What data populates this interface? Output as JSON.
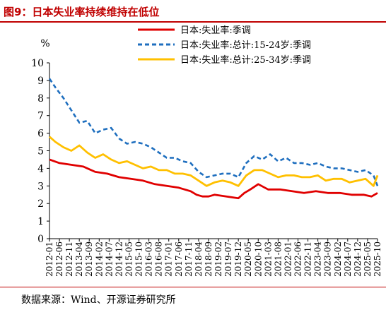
{
  "figure": {
    "title": "图9：日本失业率持续维持在低位",
    "source": "数据来源：Wind、开源证券研究所",
    "colors": {
      "title": "#c00000",
      "axis": "#000000"
    }
  },
  "chart_data": {
    "type": "line",
    "ylabel": "%",
    "ylim": [
      0,
      10
    ],
    "yticks": [
      0,
      1,
      2,
      3,
      4,
      5,
      6,
      7,
      8,
      9,
      10
    ],
    "xlim": [
      "2012-01",
      "2025-10"
    ],
    "xticks": [
      "2012-01",
      "2012-06",
      "2012-11",
      "2013-04",
      "2013-09",
      "2014-02",
      "2014-07",
      "2014-12",
      "2015-05",
      "2015-10",
      "2016-03",
      "2016-08",
      "2017-01",
      "2017-06",
      "2017-11",
      "2018-04",
      "2018-09",
      "2019-02",
      "2019-07",
      "2019-12",
      "2020-05",
      "2020-10",
      "2021-03",
      "2021-08",
      "2022-01",
      "2022-06",
      "2022-11",
      "2023-04",
      "2023-09",
      "2024-02",
      "2024-07",
      "2024-12",
      "2025-05",
      "2025-10"
    ],
    "grid": false,
    "legend_position": "top-right",
    "series": [
      {
        "name": "日本:失业率:季调",
        "color": "#e00000",
        "style": "solid",
        "points": [
          [
            "2012-01",
            4.5
          ],
          [
            "2012-06",
            4.3
          ],
          [
            "2012-12",
            4.2
          ],
          [
            "2013-06",
            4.1
          ],
          [
            "2013-12",
            3.8
          ],
          [
            "2014-06",
            3.7
          ],
          [
            "2014-12",
            3.5
          ],
          [
            "2015-06",
            3.4
          ],
          [
            "2015-12",
            3.3
          ],
          [
            "2016-06",
            3.1
          ],
          [
            "2016-12",
            3.0
          ],
          [
            "2017-06",
            2.9
          ],
          [
            "2017-12",
            2.7
          ],
          [
            "2018-03",
            2.5
          ],
          [
            "2018-06",
            2.4
          ],
          [
            "2018-09",
            2.4
          ],
          [
            "2018-12",
            2.5
          ],
          [
            "2019-06",
            2.4
          ],
          [
            "2019-12",
            2.3
          ],
          [
            "2020-03",
            2.6
          ],
          [
            "2020-06",
            2.8
          ],
          [
            "2020-10",
            3.1
          ],
          [
            "2021-03",
            2.8
          ],
          [
            "2021-09",
            2.8
          ],
          [
            "2022-03",
            2.7
          ],
          [
            "2022-09",
            2.6
          ],
          [
            "2023-03",
            2.7
          ],
          [
            "2023-09",
            2.6
          ],
          [
            "2024-03",
            2.6
          ],
          [
            "2024-09",
            2.5
          ],
          [
            "2025-03",
            2.5
          ],
          [
            "2025-07",
            2.4
          ],
          [
            "2025-10",
            2.6
          ]
        ]
      },
      {
        "name": "日本:失业率:总计:15-24岁:季调",
        "color": "#1f6fbf",
        "style": "dashed",
        "points": [
          [
            "2012-01",
            9.1
          ],
          [
            "2012-04",
            8.6
          ],
          [
            "2012-08",
            8.0
          ],
          [
            "2012-12",
            7.3
          ],
          [
            "2013-04",
            6.6
          ],
          [
            "2013-08",
            6.7
          ],
          [
            "2013-12",
            6.0
          ],
          [
            "2014-04",
            6.2
          ],
          [
            "2014-08",
            6.3
          ],
          [
            "2014-12",
            5.7
          ],
          [
            "2015-04",
            5.4
          ],
          [
            "2015-08",
            5.5
          ],
          [
            "2015-12",
            5.4
          ],
          [
            "2016-04",
            5.2
          ],
          [
            "2016-08",
            4.9
          ],
          [
            "2016-12",
            4.6
          ],
          [
            "2017-04",
            4.6
          ],
          [
            "2017-08",
            4.4
          ],
          [
            "2017-12",
            4.3
          ],
          [
            "2018-04",
            3.8
          ],
          [
            "2018-08",
            3.5
          ],
          [
            "2018-12",
            3.6
          ],
          [
            "2019-04",
            3.7
          ],
          [
            "2019-08",
            3.7
          ],
          [
            "2019-12",
            3.5
          ],
          [
            "2020-04",
            4.3
          ],
          [
            "2020-08",
            4.7
          ],
          [
            "2020-12",
            4.5
          ],
          [
            "2021-04",
            4.8
          ],
          [
            "2021-08",
            4.4
          ],
          [
            "2021-12",
            4.6
          ],
          [
            "2022-04",
            4.3
          ],
          [
            "2022-08",
            4.3
          ],
          [
            "2022-12",
            4.2
          ],
          [
            "2023-04",
            4.3
          ],
          [
            "2023-08",
            4.1
          ],
          [
            "2023-12",
            4.0
          ],
          [
            "2024-04",
            4.0
          ],
          [
            "2024-08",
            3.9
          ],
          [
            "2024-12",
            3.8
          ],
          [
            "2025-04",
            3.9
          ],
          [
            "2025-08",
            3.6
          ],
          [
            "2025-10",
            3.0
          ]
        ]
      },
      {
        "name": "日本:失业率:总计:25-34岁:季调",
        "color": "#ffc000",
        "style": "solid",
        "points": [
          [
            "2012-01",
            5.8
          ],
          [
            "2012-04",
            5.5
          ],
          [
            "2012-08",
            5.2
          ],
          [
            "2012-12",
            5.0
          ],
          [
            "2013-04",
            5.3
          ],
          [
            "2013-08",
            4.9
          ],
          [
            "2013-12",
            4.6
          ],
          [
            "2014-04",
            4.8
          ],
          [
            "2014-08",
            4.5
          ],
          [
            "2014-12",
            4.3
          ],
          [
            "2015-04",
            4.4
          ],
          [
            "2015-08",
            4.2
          ],
          [
            "2015-12",
            4.0
          ],
          [
            "2016-04",
            4.1
          ],
          [
            "2016-08",
            3.9
          ],
          [
            "2016-12",
            3.9
          ],
          [
            "2017-04",
            3.7
          ],
          [
            "2017-08",
            3.7
          ],
          [
            "2017-12",
            3.6
          ],
          [
            "2018-04",
            3.3
          ],
          [
            "2018-08",
            3.0
          ],
          [
            "2018-12",
            3.2
          ],
          [
            "2019-04",
            3.3
          ],
          [
            "2019-08",
            3.2
          ],
          [
            "2019-12",
            3.0
          ],
          [
            "2020-04",
            3.6
          ],
          [
            "2020-08",
            3.9
          ],
          [
            "2020-12",
            3.9
          ],
          [
            "2021-04",
            3.7
          ],
          [
            "2021-08",
            3.5
          ],
          [
            "2021-12",
            3.6
          ],
          [
            "2022-04",
            3.6
          ],
          [
            "2022-08",
            3.5
          ],
          [
            "2022-12",
            3.5
          ],
          [
            "2023-04",
            3.6
          ],
          [
            "2023-08",
            3.3
          ],
          [
            "2023-12",
            3.4
          ],
          [
            "2024-04",
            3.4
          ],
          [
            "2024-08",
            3.2
          ],
          [
            "2024-12",
            3.3
          ],
          [
            "2025-04",
            3.4
          ],
          [
            "2025-08",
            3.0
          ],
          [
            "2025-10",
            3.6
          ]
        ]
      }
    ]
  }
}
